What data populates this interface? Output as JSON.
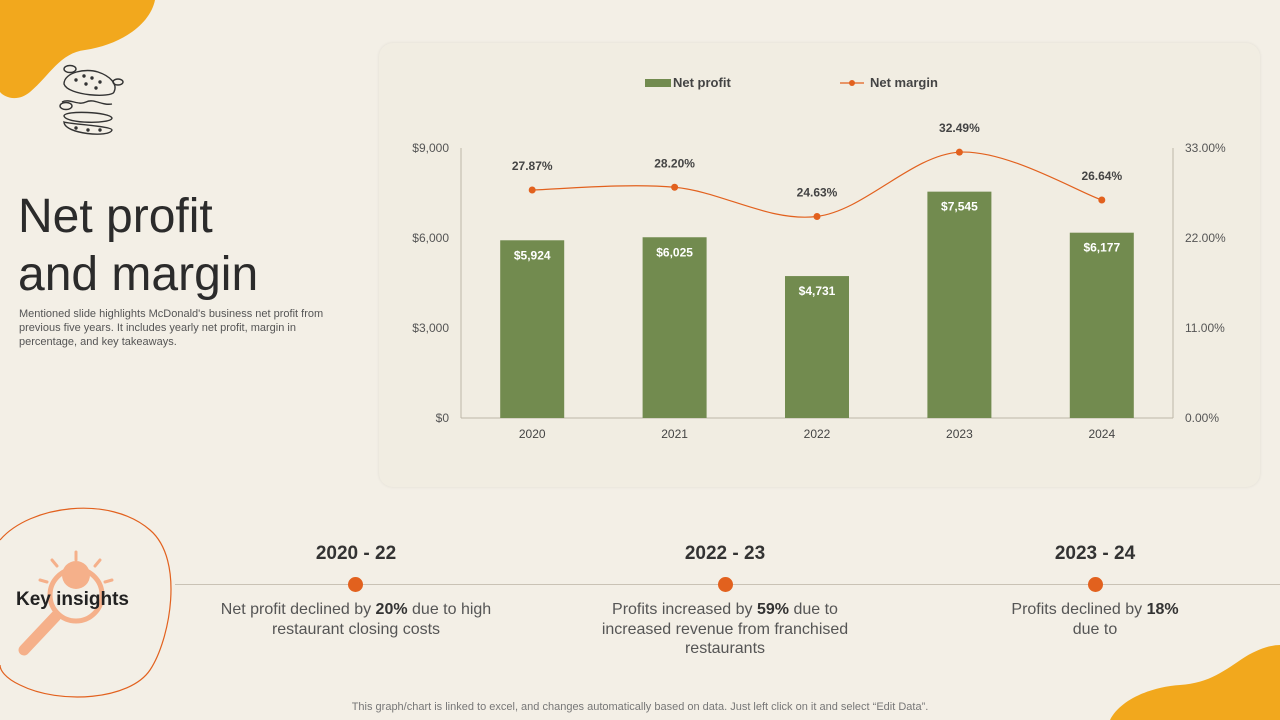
{
  "slide": {
    "title_line1": "Net profit",
    "title_line2": "and margin",
    "subtitle": "Mentioned slide highlights McDonald's business net profit from previous five years. It includes yearly net profit, margin in percentage, and key takeaways.",
    "footnote": "This graph/chart is linked to excel, and changes automatically based on data. Just left click on it and select “Edit Data”."
  },
  "colors": {
    "bar": "#728b4f",
    "line": "#e2611e",
    "accent_orange": "#f2a81d"
  },
  "icons": [
    "burger-icon",
    "lightbulb-magnifier-icon"
  ],
  "chart_data": {
    "type": "bar",
    "categories": [
      "2020",
      "2021",
      "2022",
      "2023",
      "2024"
    ],
    "series": [
      {
        "name": "Net profit",
        "type": "bar",
        "axis": "left",
        "values": [
          5924,
          6025,
          4731,
          7545,
          6177
        ],
        "labels": [
          "$5,924",
          "$6,025",
          "$4,731",
          "$7,545",
          "$6,177"
        ]
      },
      {
        "name": "Net margin",
        "type": "line",
        "axis": "right",
        "values": [
          27.87,
          28.2,
          24.63,
          32.49,
          26.64
        ],
        "labels": [
          "27.87%",
          "28.20%",
          "24.63%",
          "32.49%",
          "26.64%"
        ]
      }
    ],
    "y_left": {
      "lim": [
        0,
        9000
      ],
      "ticks": [
        0,
        3000,
        6000,
        9000
      ],
      "tick_labels": [
        "$0",
        "$3,000",
        "$6,000",
        "$9,000"
      ]
    },
    "y_right": {
      "lim": [
        0,
        33
      ],
      "ticks": [
        0,
        11,
        22,
        33
      ],
      "tick_labels": [
        "0.00%",
        "11.00%",
        "22.00%",
        "33.00%"
      ]
    },
    "legend_position": "top",
    "grid": false
  },
  "insights": {
    "label": "Key insights",
    "items": [
      {
        "period": "2020 - 22",
        "pre": "Net profit declined by ",
        "bold": "20%",
        "post": " due to high restaurant closing costs"
      },
      {
        "period": "2022 - 23",
        "pre": "Profits increased by ",
        "bold": "59%",
        "post": " due to increased revenue from franchised restaurants"
      },
      {
        "period": "2023 - 24",
        "pre": "Profits declined by ",
        "bold": "18%",
        "post": " due to"
      }
    ]
  }
}
